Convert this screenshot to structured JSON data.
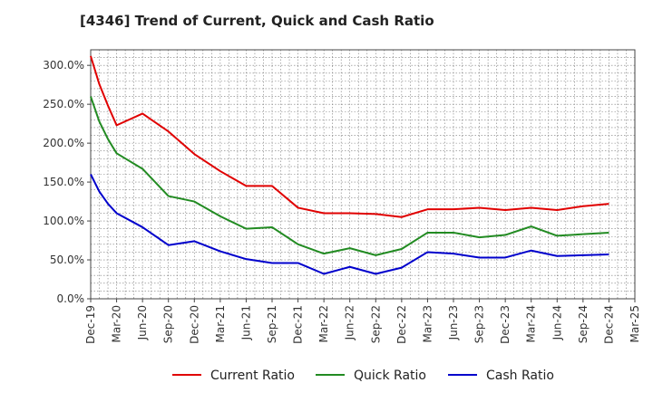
{
  "chart_data": {
    "type": "line",
    "title": "[4346]  Trend of Current, Quick and Cash Ratio",
    "xlabel": "",
    "ylabel": "",
    "ylim": [
      0,
      320
    ],
    "yticks": [
      0,
      50,
      100,
      150,
      200,
      250,
      300
    ],
    "ytick_labels": [
      "0.0%",
      "50.0%",
      "100.0%",
      "150.0%",
      "200.0%",
      "250.0%",
      "300.0%"
    ],
    "xtick_labels": [
      "Dec-19",
      "Mar-20",
      "Jun-20",
      "Sep-20",
      "Dec-20",
      "Mar-21",
      "Jun-21",
      "Sep-21",
      "Dec-21",
      "Mar-22",
      "Jun-22",
      "Sep-22",
      "Dec-22",
      "Mar-23",
      "Jun-23",
      "Sep-23",
      "Dec-23",
      "Mar-24",
      "Jun-24",
      "Sep-24",
      "Dec-24",
      "Mar-25"
    ],
    "grid": true,
    "legend_position": "bottom",
    "series": [
      {
        "name": "Current Ratio",
        "color": "#e00000",
        "points": [
          [
            0,
            312
          ],
          [
            0.33,
            276
          ],
          [
            0.67,
            248
          ],
          [
            1,
            223
          ],
          [
            2,
            238
          ],
          [
            3,
            215
          ],
          [
            4,
            186
          ],
          [
            5,
            164
          ],
          [
            6,
            145
          ],
          [
            7,
            145
          ],
          [
            8,
            117
          ],
          [
            9,
            110
          ],
          [
            10,
            110
          ],
          [
            11,
            109
          ],
          [
            12,
            105
          ],
          [
            13,
            115
          ],
          [
            14,
            115
          ],
          [
            15,
            117
          ],
          [
            16,
            114
          ],
          [
            17,
            117
          ],
          [
            18,
            114
          ],
          [
            19,
            119
          ],
          [
            20,
            122
          ]
        ]
      },
      {
        "name": "Quick Ratio",
        "color": "#228b22",
        "points": [
          [
            0,
            260
          ],
          [
            0.33,
            228
          ],
          [
            0.67,
            205
          ],
          [
            1,
            187
          ],
          [
            2,
            167
          ],
          [
            3,
            132
          ],
          [
            4,
            125
          ],
          [
            5,
            106
          ],
          [
            6,
            90
          ],
          [
            7,
            92
          ],
          [
            8,
            70
          ],
          [
            9,
            58
          ],
          [
            10,
            65
          ],
          [
            11,
            56
          ],
          [
            12,
            64
          ],
          [
            13,
            85
          ],
          [
            14,
            85
          ],
          [
            15,
            79
          ],
          [
            16,
            82
          ],
          [
            17,
            93
          ],
          [
            18,
            81
          ],
          [
            19,
            83
          ],
          [
            20,
            85
          ]
        ]
      },
      {
        "name": "Cash Ratio",
        "color": "#0000cc",
        "points": [
          [
            0,
            160
          ],
          [
            0.33,
            138
          ],
          [
            0.67,
            122
          ],
          [
            1,
            110
          ],
          [
            2,
            92
          ],
          [
            3,
            69
          ],
          [
            4,
            74
          ],
          [
            5,
            61
          ],
          [
            6,
            51
          ],
          [
            7,
            46
          ],
          [
            8,
            46
          ],
          [
            9,
            32
          ],
          [
            10,
            41
          ],
          [
            11,
            32
          ],
          [
            12,
            40
          ],
          [
            13,
            60
          ],
          [
            14,
            58
          ],
          [
            15,
            53
          ],
          [
            16,
            53
          ],
          [
            17,
            62
          ],
          [
            18,
            55
          ],
          [
            19,
            56
          ],
          [
            20,
            57
          ]
        ]
      }
    ]
  }
}
